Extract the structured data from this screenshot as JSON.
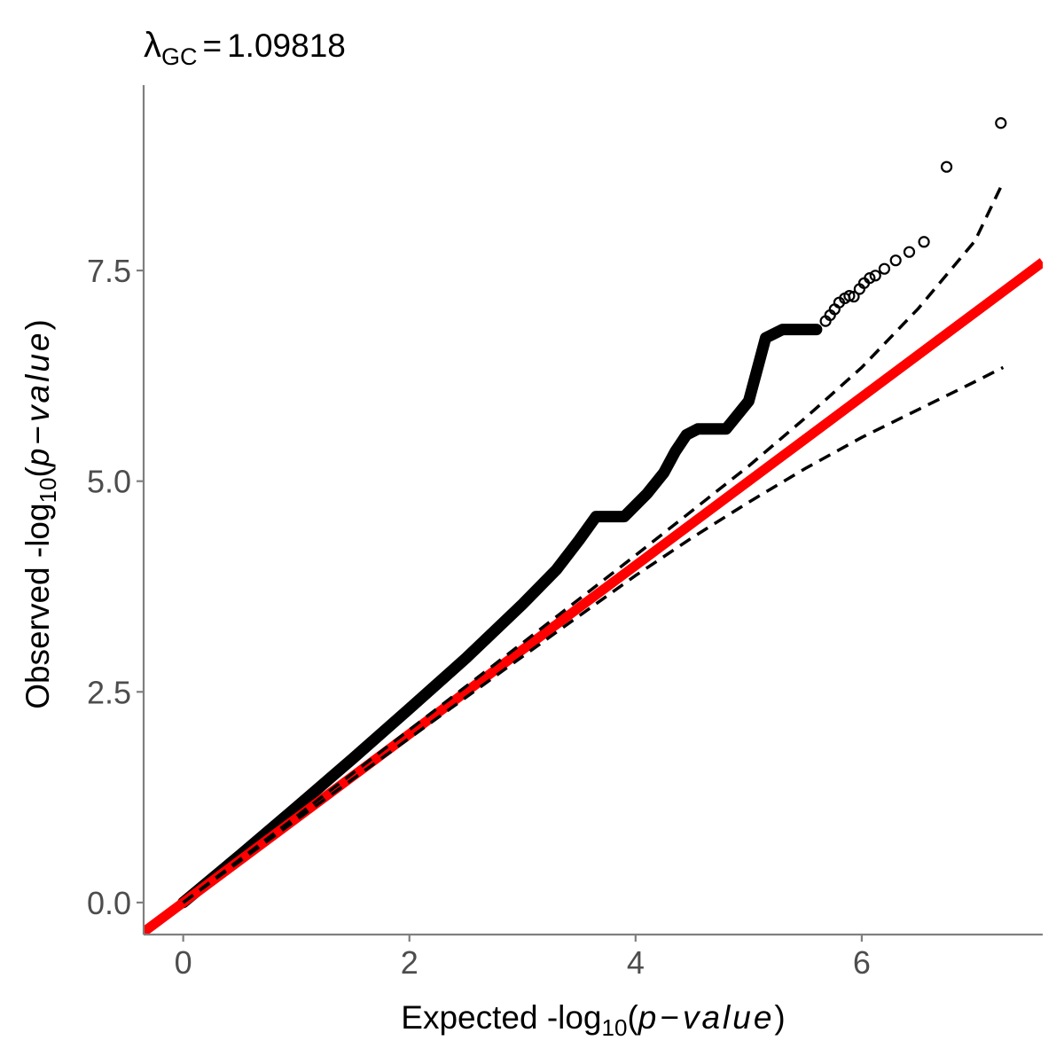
{
  "colors": {
    "points": "#000000",
    "reference_line": "#ff0000",
    "confidence_band": "#000000",
    "axis": "#7f7f7f",
    "tick_text": "#4d4d4d"
  },
  "chart_data": {
    "type": "scatter",
    "title": {
      "symbol": "λ",
      "subscript": "GC",
      "operator": "=",
      "value": "1.09818"
    },
    "xlabel": {
      "prefix": "Expected -log",
      "subscript": "10",
      "open": "(",
      "p": "p",
      "minus": "−",
      "value_word": "value",
      "close": ")"
    },
    "ylabel": {
      "prefix": "Observed -log",
      "subscript": "10",
      "open": "(",
      "p": "p",
      "minus": "−",
      "value_word": "value",
      "close": ")"
    },
    "xlim": [
      -0.35,
      7.6
    ],
    "ylim": [
      -0.38,
      9.7
    ],
    "x_ticks": [
      {
        "value": 0,
        "label": "0"
      },
      {
        "value": 2,
        "label": "2"
      },
      {
        "value": 4,
        "label": "4"
      },
      {
        "value": 6,
        "label": "6"
      }
    ],
    "y_ticks": [
      {
        "value": 0.0,
        "label": "0.0"
      },
      {
        "value": 2.5,
        "label": "2.5"
      },
      {
        "value": 5.0,
        "label": "5.0"
      },
      {
        "value": 7.5,
        "label": "7.5"
      }
    ],
    "grid": false,
    "legend": "none",
    "reference_line": {
      "intercept": 0,
      "slope": 1
    },
    "ci_band": {
      "upper": [
        [
          0,
          0
        ],
        [
          1,
          1.02
        ],
        [
          2,
          2.05
        ],
        [
          3,
          3.08
        ],
        [
          4,
          4.12
        ],
        [
          4.5,
          4.65
        ],
        [
          5,
          5.18
        ],
        [
          5.5,
          5.75
        ],
        [
          6,
          6.35
        ],
        [
          6.5,
          7.05
        ],
        [
          7,
          7.85
        ],
        [
          7.25,
          8.55
        ]
      ],
      "lower": [
        [
          0,
          0
        ],
        [
          1,
          0.98
        ],
        [
          2,
          1.95
        ],
        [
          3,
          2.92
        ],
        [
          4,
          3.88
        ],
        [
          4.5,
          4.33
        ],
        [
          5,
          4.75
        ],
        [
          5.5,
          5.15
        ],
        [
          6,
          5.52
        ],
        [
          6.5,
          5.85
        ],
        [
          7,
          6.18
        ],
        [
          7.25,
          6.35
        ]
      ]
    },
    "dense_band": [
      [
        0,
        0
      ],
      [
        0.5,
        0.56
      ],
      [
        1,
        1.13
      ],
      [
        1.5,
        1.71
      ],
      [
        2,
        2.3
      ],
      [
        2.5,
        2.9
      ],
      [
        3,
        3.54
      ],
      [
        3.3,
        3.95
      ],
      [
        3.5,
        4.3
      ],
      [
        3.65,
        4.58
      ],
      [
        3.9,
        4.58
      ],
      [
        4.1,
        4.85
      ],
      [
        4.25,
        5.1
      ],
      [
        4.35,
        5.35
      ],
      [
        4.45,
        5.55
      ],
      [
        4.55,
        5.62
      ],
      [
        4.8,
        5.62
      ],
      [
        5.0,
        5.95
      ],
      [
        5.05,
        6.2
      ],
      [
        5.15,
        6.7
      ],
      [
        5.3,
        6.8
      ],
      [
        5.6,
        6.8
      ]
    ],
    "points": [
      {
        "x": 5.68,
        "y": 6.9
      },
      {
        "x": 5.72,
        "y": 6.97
      },
      {
        "x": 5.76,
        "y": 7.04
      },
      {
        "x": 5.8,
        "y": 7.12
      },
      {
        "x": 5.85,
        "y": 7.17
      },
      {
        "x": 5.89,
        "y": 7.2
      },
      {
        "x": 5.93,
        "y": 7.19
      },
      {
        "x": 5.98,
        "y": 7.28
      },
      {
        "x": 6.02,
        "y": 7.35
      },
      {
        "x": 6.07,
        "y": 7.41
      },
      {
        "x": 6.12,
        "y": 7.44
      },
      {
        "x": 6.2,
        "y": 7.52
      },
      {
        "x": 6.3,
        "y": 7.62
      },
      {
        "x": 6.42,
        "y": 7.72
      },
      {
        "x": 6.55,
        "y": 7.84
      },
      {
        "x": 6.75,
        "y": 8.73
      },
      {
        "x": 7.23,
        "y": 9.25
      }
    ]
  }
}
